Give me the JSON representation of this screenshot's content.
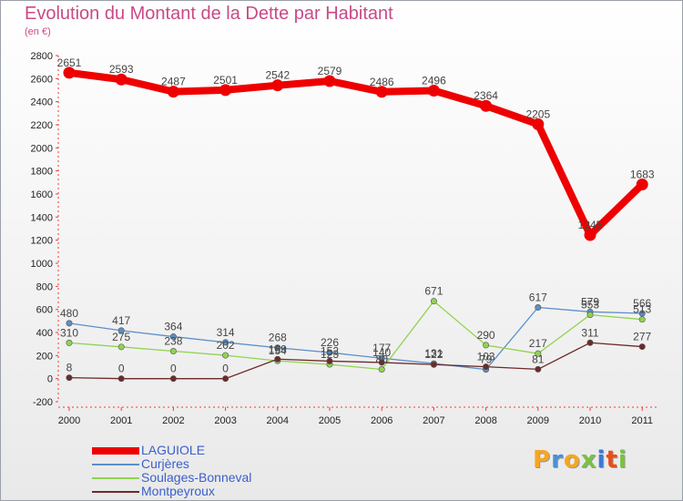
{
  "title": "Evolution du Montant de la Dette par Habitant",
  "subtitle": "(en €)",
  "chart_data": {
    "type": "line",
    "categories": [
      "2000",
      "2001",
      "2002",
      "2003",
      "2004",
      "2005",
      "2006",
      "2007",
      "2008",
      "2009",
      "2010",
      "2011"
    ],
    "ylim": [
      -200,
      2800
    ],
    "yticks": [
      -200,
      0,
      200,
      400,
      600,
      800,
      1000,
      1200,
      1400,
      1600,
      1800,
      2000,
      2200,
      2400,
      2600,
      2800
    ],
    "grid": false,
    "legend_position": "bottom-left",
    "series": [
      {
        "name": "LAGUIOLE",
        "color": "#ee0000",
        "emphasis": true,
        "values": [
          2651,
          2593,
          2487,
          2501,
          2542,
          2579,
          2486,
          2496,
          2364,
          2205,
          1245,
          1683
        ]
      },
      {
        "name": "Curjères",
        "color": "#5b8fc9",
        "emphasis": false,
        "values": [
          480,
          417,
          364,
          314,
          268,
          226,
          177,
          131,
          79,
          617,
          579,
          566
        ]
      },
      {
        "name": "Soulages-Bonneval",
        "color": "#8fd44f",
        "emphasis": false,
        "values": [
          310,
          275,
          238,
          202,
          154,
          123,
          80,
          671,
          290,
          217,
          553,
          513
        ]
      },
      {
        "name": "Montpeyroux",
        "color": "#6e2a2a",
        "emphasis": false,
        "values": [
          8,
          0,
          0,
          0,
          169,
          152,
          140,
          122,
          103,
          81,
          311,
          277
        ]
      }
    ]
  },
  "logo": {
    "text": "Proxiti",
    "colors": [
      "#f5a623",
      "#4a90d9",
      "#f5a623",
      "#7ac142",
      "#3a7bd5",
      "#e94e1b",
      "#7ac142"
    ]
  }
}
